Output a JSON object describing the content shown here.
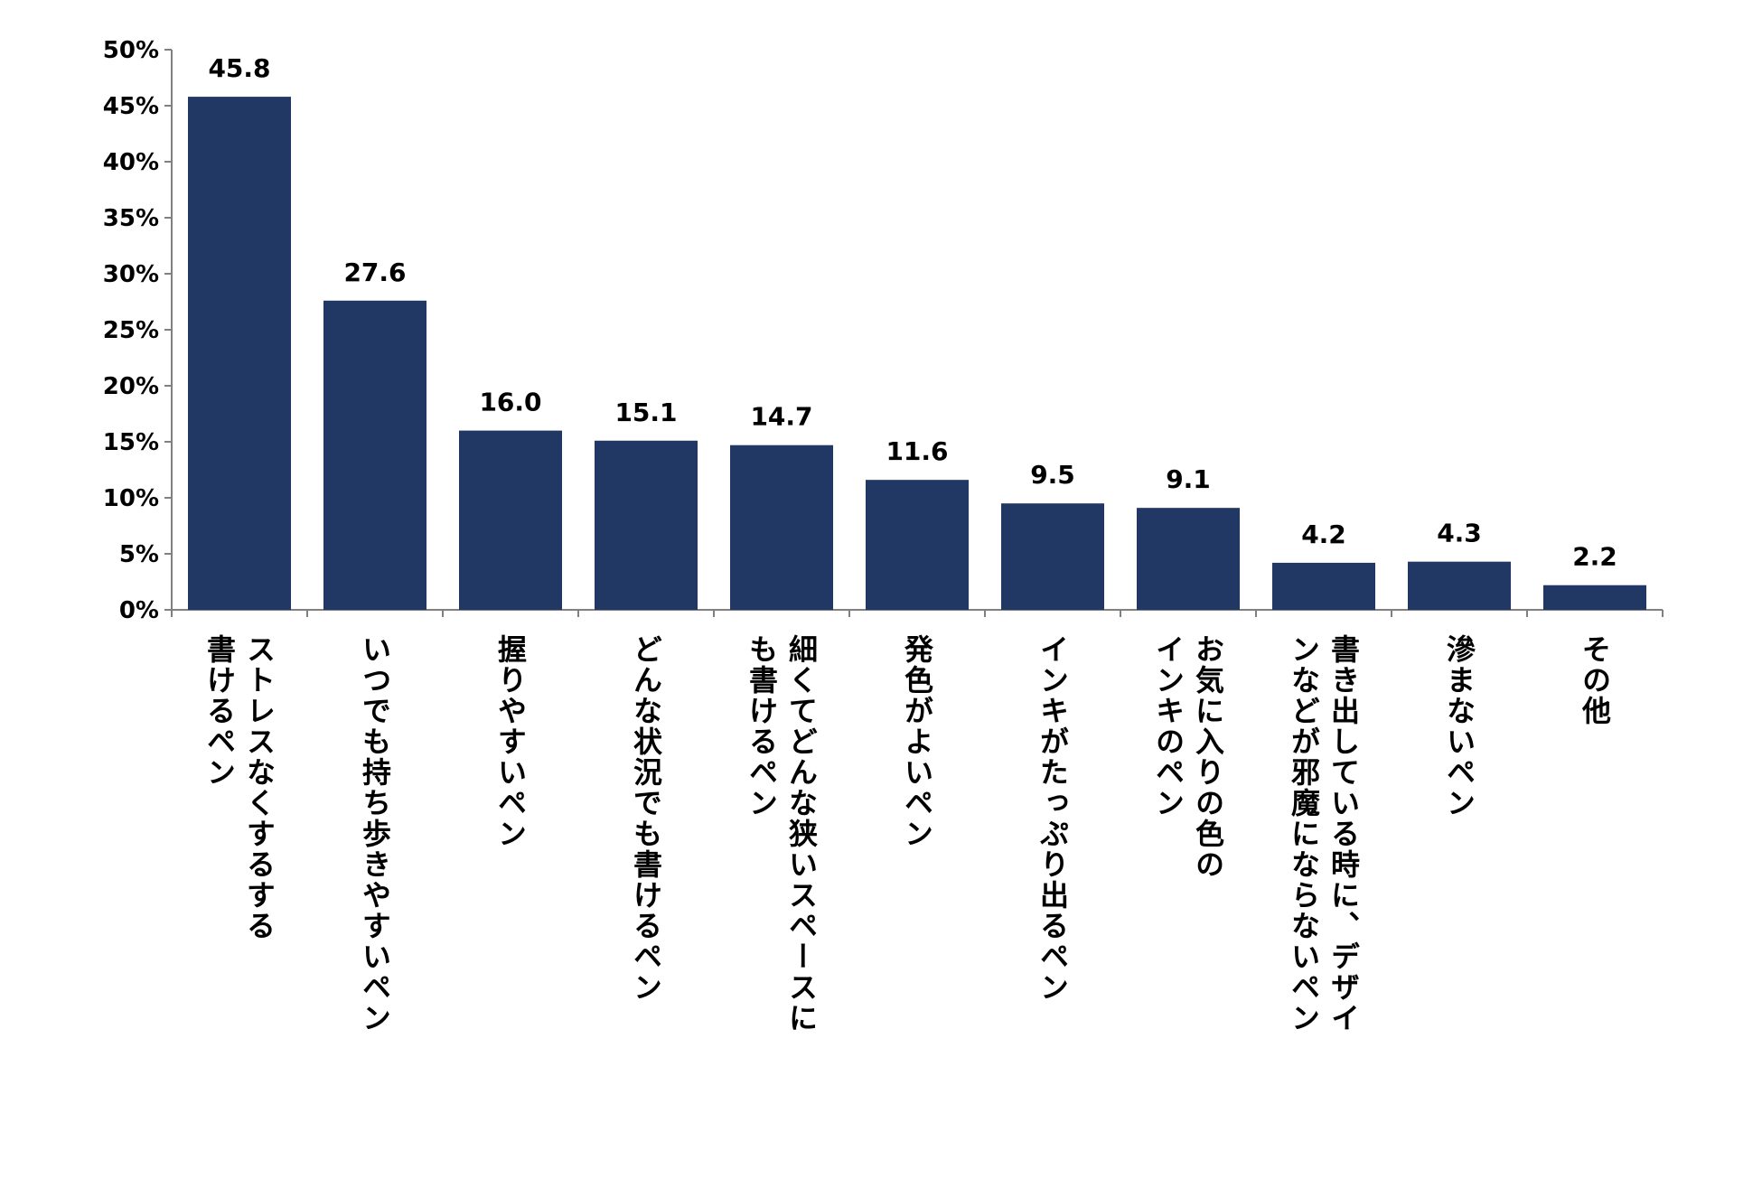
{
  "chart_data": {
    "type": "bar",
    "title": "",
    "xlabel": "",
    "ylabel": "",
    "ylim": [
      0,
      50
    ],
    "y_unit": "%",
    "y_ticks": [
      "0%",
      "5%",
      "10%",
      "15%",
      "20%",
      "25%",
      "30%",
      "35%",
      "40%",
      "45%",
      "50%"
    ],
    "categories": [
      "ストレスなくするする書けるペン",
      "いつでも持ち歩きやすいペン",
      "握りやすいペン",
      "どんな状況でも書けるペン",
      "細くてどんな狭いスペースにも書けるペン",
      "発色がよいペン",
      "インキがたっぷり出るペン",
      "お気に入りの色のインキのペン",
      "書き出している時に、デザインなどが邪魔にならないペン",
      "滲まないペン",
      "その他"
    ],
    "category_lines": [
      [
        "ストレスなくするする",
        "書けるペン"
      ],
      [
        "いつでも持ち歩きやすいペン"
      ],
      [
        "握りやすいペン"
      ],
      [
        "どんな状況でも書けるペン"
      ],
      [
        "細くてどんな狭いスペースに",
        "も書けるペン"
      ],
      [
        "発色がよいペン"
      ],
      [
        "インキがたっぷり出るペン"
      ],
      [
        "お気に入りの色の",
        "インキのペン"
      ],
      [
        "書き出している時に、デザイ",
        "ンなどが邪魔にならないペン"
      ],
      [
        "滲まないペン"
      ],
      [
        "その他"
      ]
    ],
    "values": [
      45.8,
      27.6,
      16.0,
      15.1,
      14.7,
      11.6,
      9.5,
      9.1,
      4.2,
      4.3,
      2.2
    ],
    "value_labels": [
      "45.8",
      "27.6",
      "16.0",
      "15.1",
      "14.7",
      "11.6",
      "9.5",
      "9.1",
      "4.2",
      "4.3",
      "2.2"
    ],
    "bar_color": "#223864",
    "axis_color": "#808080",
    "grid": false,
    "legend": "none"
  }
}
